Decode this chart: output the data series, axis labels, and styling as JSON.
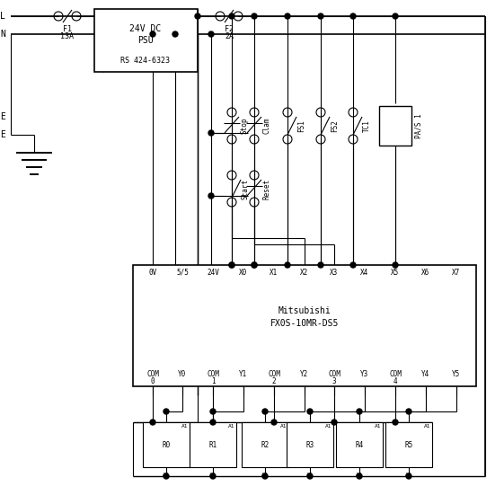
{
  "bg_color": "#ffffff",
  "line_color": "#000000",
  "lw": 0.8,
  "psu_text1": "24V DC",
  "psu_text2": "PSU",
  "psu_text3": "RS 424-6323",
  "plc_text1": "Mitsubishi",
  "plc_text2": "FX0S-10MR-DS5",
  "plc_inputs": [
    "0V",
    "5/5",
    "24V",
    "X0",
    "X1",
    "X2",
    "X3",
    "X4",
    "X5",
    "X6",
    "X7"
  ],
  "plc_outputs": [
    "COM",
    "Y0",
    "COM",
    "Y1",
    "COM",
    "Y2",
    "COM",
    "Y3",
    "COM",
    "Y4",
    "Y5"
  ],
  "plc_out_sub": [
    "0",
    "",
    "1",
    "",
    "2",
    "",
    "3",
    "",
    "4",
    "",
    ""
  ],
  "relay_labels": [
    "R0",
    "R1",
    "R2",
    "R3",
    "R4",
    "R5"
  ]
}
